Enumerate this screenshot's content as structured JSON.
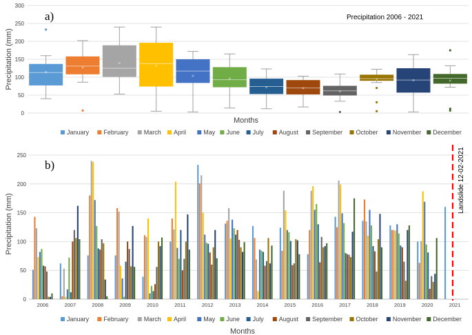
{
  "colors": {
    "January": "#5b9bd5",
    "February": "#ed7d31",
    "March": "#a5a5a5",
    "April": "#ffc000",
    "May": "#4472c4",
    "June": "#70ad47",
    "July": "#255e91",
    "August": "#9e480e",
    "September": "#636363",
    "October": "#997300",
    "November": "#264478",
    "December": "#43682b",
    "grid": "#d9d9d9",
    "landslide": "#ff0000"
  },
  "chart_data": [
    {
      "type": "box",
      "panel_label": "a)",
      "title": "Precipitation 2006 - 2021",
      "xlabel": "Months",
      "ylabel": "Precipitation (mm)",
      "ylim": [
        0,
        300
      ],
      "yticks": [
        0,
        50,
        100,
        150,
        200,
        250,
        300
      ],
      "categories": [
        "January",
        "February",
        "March",
        "April",
        "May",
        "June",
        "July",
        "August",
        "September",
        "October",
        "November",
        "December"
      ],
      "boxes": [
        {
          "min": 40,
          "q1": 77,
          "median": 113,
          "q3": 137,
          "max": 160,
          "mean": 115,
          "outliers": [
            233
          ]
        },
        {
          "min": 86,
          "q1": 108,
          "median": 131,
          "q3": 158,
          "max": 202,
          "mean": 128,
          "outliers": [
            7
          ]
        },
        {
          "min": 53,
          "q1": 101,
          "median": 125,
          "q3": 189,
          "max": 240,
          "mean": 140,
          "outliers": []
        },
        {
          "min": 5,
          "q1": 74,
          "median": 138,
          "q3": 196,
          "max": 240,
          "mean": 133,
          "outliers": []
        },
        {
          "min": 3,
          "q1": 84,
          "median": 117,
          "q3": 150,
          "max": 172,
          "mean": 105,
          "outliers": []
        },
        {
          "min": 14,
          "q1": 72,
          "median": 93,
          "q3": 128,
          "max": 165,
          "mean": 97,
          "outliers": []
        },
        {
          "min": 12,
          "q1": 53,
          "median": 74,
          "q3": 96,
          "max": 123,
          "mean": 73,
          "outliers": []
        },
        {
          "min": 17,
          "q1": 52,
          "median": 70,
          "q3": 92,
          "max": 103,
          "mean": 70,
          "outliers": []
        },
        {
          "min": 33,
          "q1": 49,
          "median": 62,
          "q3": 76,
          "max": 109,
          "mean": 62,
          "outliers": [
            3
          ]
        },
        {
          "min": 85,
          "q1": 90,
          "median": 96,
          "q3": 107,
          "max": 122,
          "mean": 95,
          "outliers": [
            70,
            30,
            5
          ]
        },
        {
          "min": 3,
          "q1": 57,
          "median": 92,
          "q3": 125,
          "max": 163,
          "mean": 92,
          "outliers": []
        },
        {
          "min": 72,
          "q1": 82,
          "median": 97,
          "q3": 109,
          "max": 132,
          "mean": 91,
          "outliers": [
            175,
            12,
            7
          ]
        }
      ]
    },
    {
      "type": "bar",
      "panel_label": "b)",
      "xlabel": "Months",
      "ylabel": "Precipitation (mm)",
      "ylim": [
        0,
        250
      ],
      "yticks": [
        0,
        50,
        100,
        150,
        200,
        250
      ],
      "categories": [
        "2006",
        "2007",
        "2008",
        "2009",
        "2010",
        "2011",
        "2012",
        "2013",
        "2014",
        "2015",
        "2016",
        "2017",
        "2018",
        "2019",
        "2020",
        "2021"
      ],
      "annotation": "Landslide 12-02-2021",
      "series": [
        {
          "name": "January",
          "values": [
            51,
            62,
            76,
            76,
            39,
            100,
            233,
            131,
            127,
            124,
            78,
            143,
            136,
            128,
            100,
            160
          ]
        },
        {
          "name": "February",
          "values": [
            143,
            5,
            180,
            158,
            111,
            140,
            201,
            136,
            106,
            84,
            120,
            125,
            173,
            120,
            63,
            null
          ]
        },
        {
          "name": "March",
          "values": [
            123,
            53,
            240,
            152,
            108,
            121,
            215,
            158,
            69,
            188,
            188,
            206,
            135,
            120,
            101,
            null
          ]
        },
        {
          "name": "April",
          "values": [
            73,
            4,
            238,
            58,
            140,
            204,
            150,
            105,
            14,
            154,
            196,
            199,
            110,
            119,
            187,
            null
          ]
        },
        {
          "name": "May",
          "values": [
            82,
            17,
            172,
            36,
            10,
            89,
            112,
            138,
            86,
            120,
            155,
            149,
            155,
            130,
            169,
            null
          ]
        },
        {
          "name": "June",
          "values": [
            87,
            72,
            127,
            4,
            23,
            70,
            98,
            123,
            84,
            116,
            165,
            132,
            128,
            114,
            95,
            null
          ]
        },
        {
          "name": "July",
          "values": [
            58,
            12,
            88,
            65,
            14,
            120,
            96,
            112,
            82,
            101,
            130,
            80,
            92,
            93,
            81,
            null
          ]
        },
        {
          "name": "August",
          "values": [
            57,
            100,
            86,
            100,
            26,
            50,
            81,
            120,
            58,
            59,
            64,
            78,
            83,
            90,
            18,
            null
          ]
        },
        {
          "name": "September",
          "values": [
            48,
            120,
            104,
            87,
            56,
            70,
            60,
            103,
            66,
            62,
            108,
            77,
            48,
            65,
            40,
            null
          ]
        },
        {
          "name": "October",
          "values": [
            4,
            106,
            97,
            57,
            100,
            100,
            90,
            90,
            106,
            104,
            90,
            73,
            104,
            32,
            30,
            null
          ]
        },
        {
          "name": "November",
          "values": [
            4,
            162,
            34,
            127,
            92,
            147,
            120,
            82,
            62,
            102,
            92,
            117,
            148,
            120,
            44,
            null
          ]
        },
        {
          "name": "December",
          "values": [
            10,
            104,
            5,
            56,
            107,
            86,
            71,
            99,
            93,
            78,
            97,
            175,
            90,
            128,
            106,
            null
          ]
        }
      ]
    }
  ]
}
